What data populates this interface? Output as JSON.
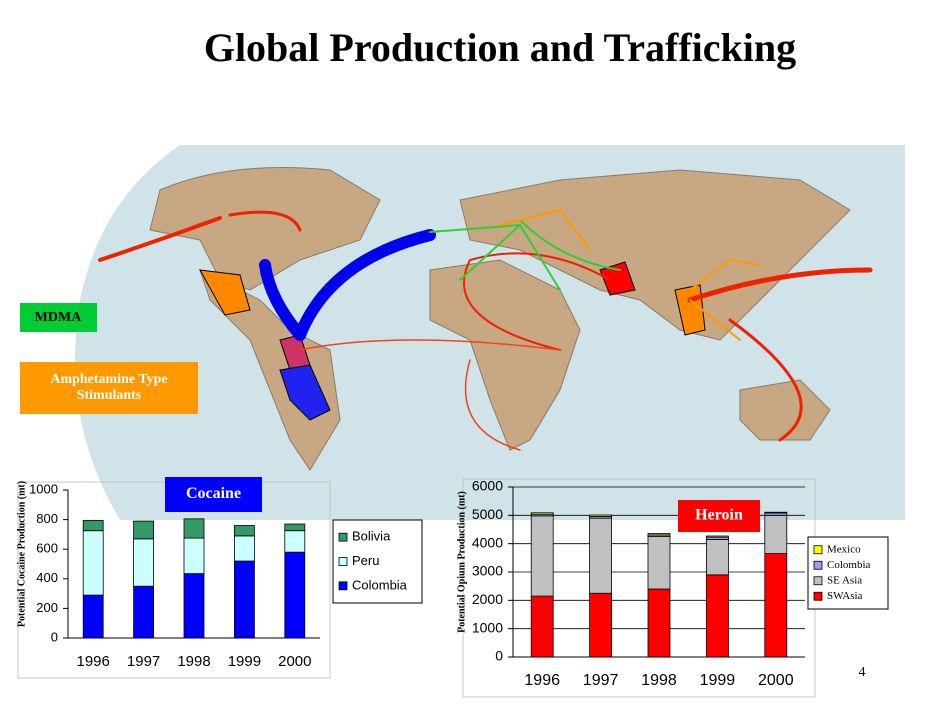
{
  "slide": {
    "title": "Global Production and Trafficking",
    "labels": [
      "MDMA",
      "Amphetamine Type Stimulants"
    ],
    "page_number": "4"
  },
  "chart_data": [
    {
      "type": "bar",
      "stacked": true,
      "badge": "Cocaine",
      "badge_color": "#0000ff",
      "y_label": "Potential Cocaine Production (mt)",
      "categories": [
        "1996",
        "1997",
        "1998",
        "1999",
        "2000"
      ],
      "series": [
        {
          "name": "Colombia",
          "color": "#0000ff",
          "values": [
            290,
            350,
            435,
            520,
            580
          ]
        },
        {
          "name": "Peru",
          "color": "#ccffff",
          "values": [
            435,
            320,
            240,
            170,
            145
          ]
        },
        {
          "name": "Bolivia",
          "color": "#339966",
          "values": [
            70,
            120,
            130,
            70,
            45
          ]
        }
      ],
      "ylim": [
        0,
        1000
      ],
      "yticks": [
        0,
        200,
        400,
        600,
        800,
        1000
      ],
      "grid": false
    },
    {
      "type": "bar",
      "stacked": true,
      "badge": "Heroin",
      "badge_color": "#ff0000",
      "y_label": "Potential Opium Production (mt)",
      "categories": [
        "1996",
        "1997",
        "1998",
        "1999",
        "2000"
      ],
      "series": [
        {
          "name": "SWAsia",
          "color": "#ff0000",
          "values": [
            2150,
            2250,
            2400,
            2900,
            3650
          ]
        },
        {
          "name": "SE Asia",
          "color": "#c0c0c0",
          "values": [
            2830,
            2650,
            1850,
            1250,
            1350
          ]
        },
        {
          "name": "Colombia",
          "color": "#9999ff",
          "values": [
            60,
            60,
            60,
            80,
            80
          ]
        },
        {
          "name": "Mexico",
          "color": "#ffff00",
          "values": [
            50,
            50,
            50,
            40,
            30
          ]
        }
      ],
      "ylim": [
        0,
        6000
      ],
      "yticks": [
        0,
        1000,
        2000,
        3000,
        4000,
        5000,
        6000
      ],
      "grid": true
    }
  ]
}
